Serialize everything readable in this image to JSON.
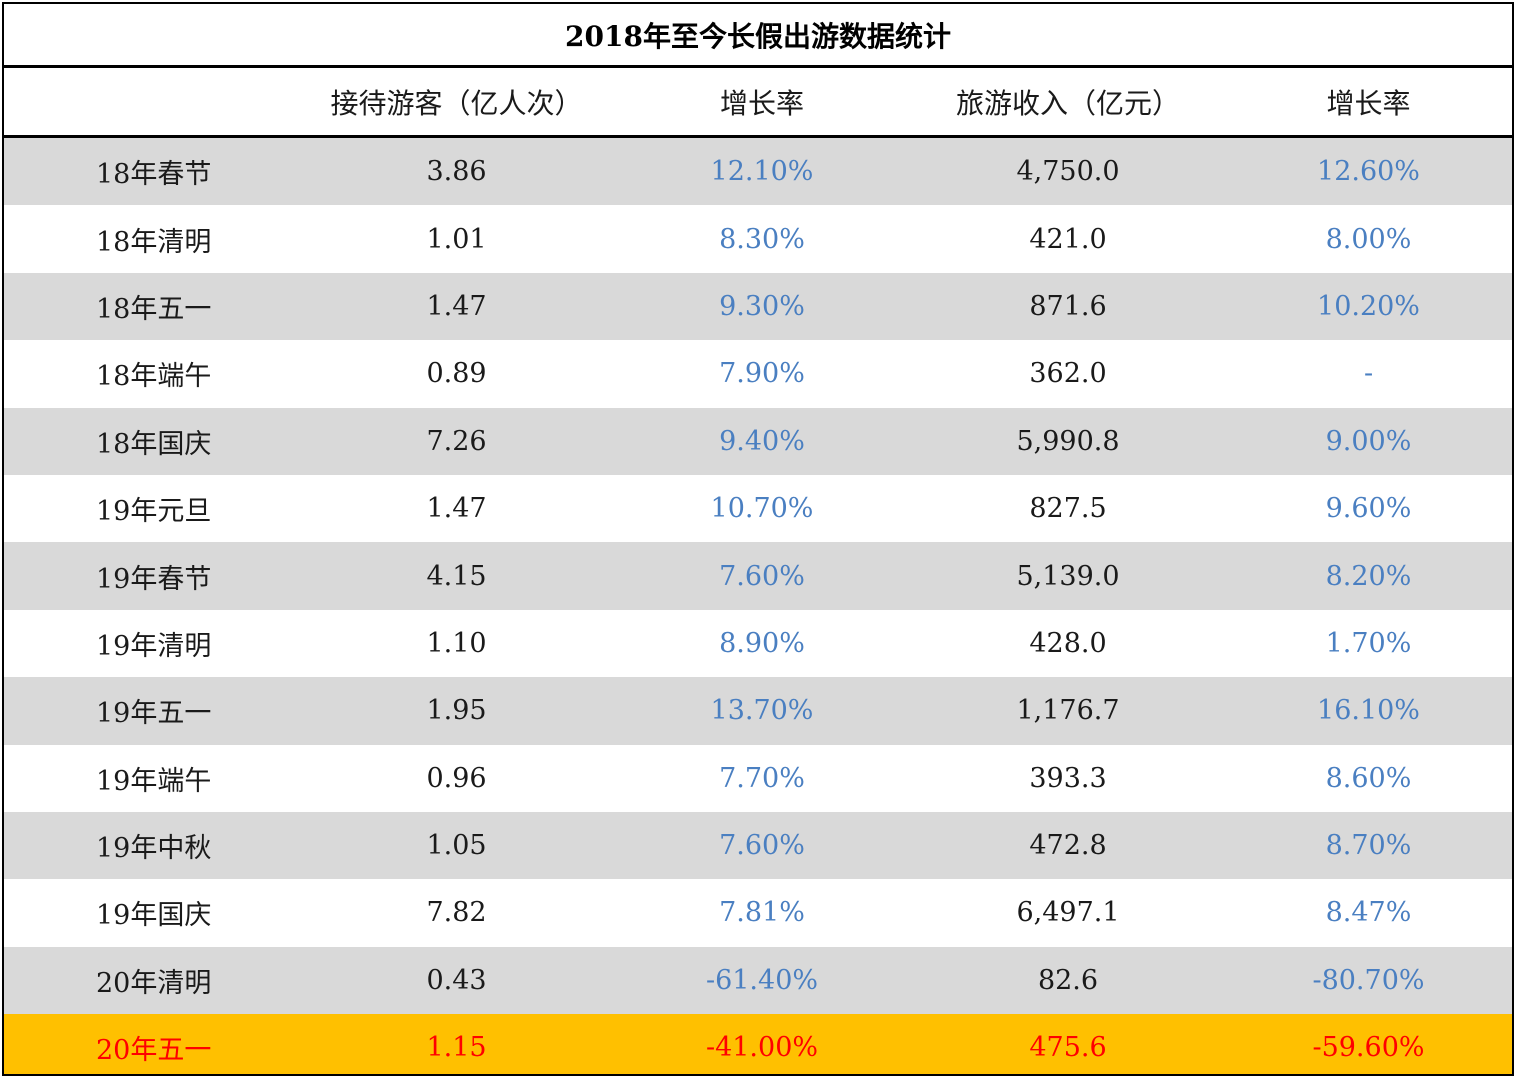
{
  "title": "2018年至今长假出游数据统计",
  "headers": [
    "",
    "接待游客（亿人次）",
    "增长率",
    "旅游收入（亿元）",
    "增长率"
  ],
  "colors": {
    "shade": "#d9d9d9",
    "rate_text": "#4a7fc1",
    "highlight_bg": "#ffc000",
    "highlight_text": "#ff0000"
  },
  "rows": [
    {
      "label": "18年春节",
      "visitors": "3.86",
      "visitors_growth": "12.10%",
      "revenue": "4,750.0",
      "revenue_growth": "12.60%"
    },
    {
      "label": "18年清明",
      "visitors": "1.01",
      "visitors_growth": "8.30%",
      "revenue": "421.0",
      "revenue_growth": "8.00%"
    },
    {
      "label": "18年五一",
      "visitors": "1.47",
      "visitors_growth": "9.30%",
      "revenue": "871.6",
      "revenue_growth": "10.20%"
    },
    {
      "label": "18年端午",
      "visitors": "0.89",
      "visitors_growth": "7.90%",
      "revenue": "362.0",
      "revenue_growth": "-"
    },
    {
      "label": "18年国庆",
      "visitors": "7.26",
      "visitors_growth": "9.40%",
      "revenue": "5,990.8",
      "revenue_growth": "9.00%"
    },
    {
      "label": "19年元旦",
      "visitors": "1.47",
      "visitors_growth": "10.70%",
      "revenue": "827.5",
      "revenue_growth": "9.60%"
    },
    {
      "label": "19年春节",
      "visitors": "4.15",
      "visitors_growth": "7.60%",
      "revenue": "5,139.0",
      "revenue_growth": "8.20%"
    },
    {
      "label": "19年清明",
      "visitors": "1.10",
      "visitors_growth": "8.90%",
      "revenue": "428.0",
      "revenue_growth": "1.70%"
    },
    {
      "label": "19年五一",
      "visitors": "1.95",
      "visitors_growth": "13.70%",
      "revenue": "1,176.7",
      "revenue_growth": "16.10%"
    },
    {
      "label": "19年端午",
      "visitors": "0.96",
      "visitors_growth": "7.70%",
      "revenue": "393.3",
      "revenue_growth": "8.60%"
    },
    {
      "label": "19年中秋",
      "visitors": "1.05",
      "visitors_growth": "7.60%",
      "revenue": "472.8",
      "revenue_growth": "8.70%"
    },
    {
      "label": "19年国庆",
      "visitors": "7.82",
      "visitors_growth": "7.81%",
      "revenue": "6,497.1",
      "revenue_growth": "8.47%"
    },
    {
      "label": "20年清明",
      "visitors": "0.43",
      "visitors_growth": "-61.40%",
      "revenue": "82.6",
      "revenue_growth": "-80.70%"
    },
    {
      "label": "20年五一",
      "visitors": "1.15",
      "visitors_growth": "-41.00%",
      "revenue": "475.6",
      "revenue_growth": "-59.60%"
    }
  ]
}
